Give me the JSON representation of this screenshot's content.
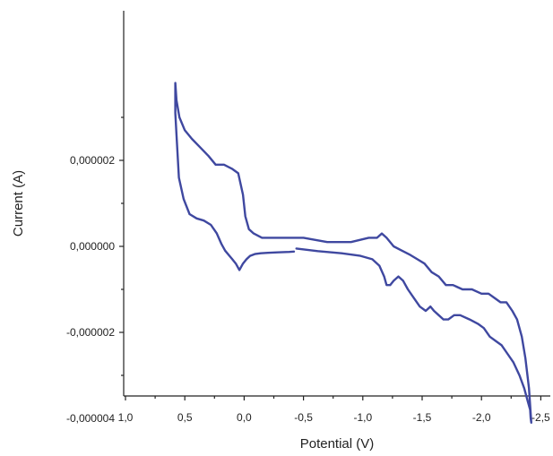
{
  "chart_data": {
    "type": "line",
    "title": "",
    "xlabel": "Potential (V)",
    "ylabel": "Current (A)",
    "xlim": [
      1.0,
      -2.6
    ],
    "ylim": [
      3.5e-06,
      -5.5e-06
    ],
    "x_ticks": [
      {
        "value": 1.0,
        "label": "1,0"
      },
      {
        "value": 0.5,
        "label": "0,5"
      },
      {
        "value": 0.0,
        "label": "0,0"
      },
      {
        "value": -0.5,
        "label": "-0,5"
      },
      {
        "value": -1.0,
        "label": "-1,0"
      },
      {
        "value": -1.5,
        "label": "-1,5"
      },
      {
        "value": -2.0,
        "label": "-2,0"
      },
      {
        "value": -2.5,
        "label": "-2,5"
      }
    ],
    "y_ticks": [
      {
        "value": -4e-06,
        "label": "-0,000004"
      },
      {
        "value": -2e-06,
        "label": "-0,000002"
      },
      {
        "value": 0.0,
        "label": "0,000000"
      },
      {
        "value": 2e-06,
        "label": "0,000002"
      }
    ],
    "grid": false,
    "legend": "none",
    "series": [
      {
        "color": "#3f48a0",
        "x": [
          -0.44,
          -0.62,
          -0.82,
          -0.98,
          -1.08,
          -1.14,
          -1.18,
          -1.2,
          -1.23,
          -1.26,
          -1.3,
          -1.34,
          -1.38,
          -1.43,
          -1.48,
          -1.53,
          -1.57,
          -1.6,
          -1.64,
          -1.68,
          -1.72,
          -1.77,
          -1.82,
          -1.9,
          -1.97,
          -2.02,
          -2.07,
          -2.12,
          -2.17,
          -2.22,
          -2.27,
          -2.32,
          -2.36,
          -2.39,
          -2.41,
          -2.415,
          -2.42,
          -2.4,
          -2.37,
          -2.34,
          -2.3,
          -2.26,
          -2.21,
          -2.16,
          -2.11,
          -2.06,
          -2.0,
          -1.92,
          -1.84,
          -1.76,
          -1.7,
          -1.64,
          -1.58,
          -1.52,
          -1.46,
          -1.4,
          -1.33,
          -1.26,
          -1.2,
          -1.16,
          -1.12,
          -1.05,
          -0.9,
          -0.7,
          -0.5,
          -0.3,
          -0.15,
          -0.08,
          -0.04,
          -0.01,
          0.01,
          0.05,
          0.1,
          0.17,
          0.24,
          0.3,
          0.37,
          0.44,
          0.5,
          0.545,
          0.57,
          0.58,
          0.58,
          0.57,
          0.55,
          0.51,
          0.46,
          0.4,
          0.34,
          0.28,
          0.23,
          0.19,
          0.16,
          0.13,
          0.1,
          0.07,
          0.04,
          0.01,
          -0.02,
          -0.05,
          -0.09,
          -0.14,
          -0.2,
          -0.28,
          -0.38,
          -0.42
        ],
        "y": [
          -5e-08,
          -1.1e-07,
          -1.6e-07,
          -2.2e-07,
          -3e-07,
          -4.5e-07,
          -7e-07,
          -9e-07,
          -9e-07,
          -8e-07,
          -7e-07,
          -8e-07,
          -1e-06,
          -1.2e-06,
          -1.4e-06,
          -1.5e-06,
          -1.4e-06,
          -1.5e-06,
          -1.6e-06,
          -1.7e-06,
          -1.7e-06,
          -1.6e-06,
          -1.6e-06,
          -1.7e-06,
          -1.8e-06,
          -1.9e-06,
          -2.1e-06,
          -2.2e-06,
          -2.3e-06,
          -2.5e-06,
          -2.7e-06,
          -3e-06,
          -3.3e-06,
          -3.6e-06,
          -3.8e-06,
          -4e-06,
          -4.1e-06,
          -3.3e-06,
          -2.6e-06,
          -2.1e-06,
          -1.7e-06,
          -1.5e-06,
          -1.3e-06,
          -1.3e-06,
          -1.2e-06,
          -1.1e-06,
          -1.1e-06,
          -1e-06,
          -1e-06,
          -9e-07,
          -9e-07,
          -7e-07,
          -6e-07,
          -4e-07,
          -3e-07,
          -2e-07,
          -1e-07,
          0.0,
          2e-07,
          3e-07,
          2e-07,
          2e-07,
          1e-07,
          1e-07,
          2e-07,
          2e-07,
          2e-07,
          3e-07,
          4e-07,
          7e-07,
          1.2e-06,
          1.7e-06,
          1.8e-06,
          1.9e-06,
          1.9e-06,
          2.1e-06,
          2.3e-06,
          2.5e-06,
          2.7e-06,
          3e-06,
          3.4e-06,
          3.8e-06,
          3.1e-06,
          2.6e-06,
          1.6e-06,
          1.1e-06,
          7.5e-07,
          6.5e-07,
          6e-07,
          5e-07,
          3e-07,
          5e-08,
          -1e-07,
          -2e-07,
          -3e-07,
          -4e-07,
          -5.5e-07,
          -4e-07,
          -3e-07,
          -2.2e-07,
          -1.8e-07,
          -1.6e-07,
          -1.5e-07,
          -1.4e-07,
          -1.3e-07,
          -1.2e-07
        ]
      }
    ]
  }
}
